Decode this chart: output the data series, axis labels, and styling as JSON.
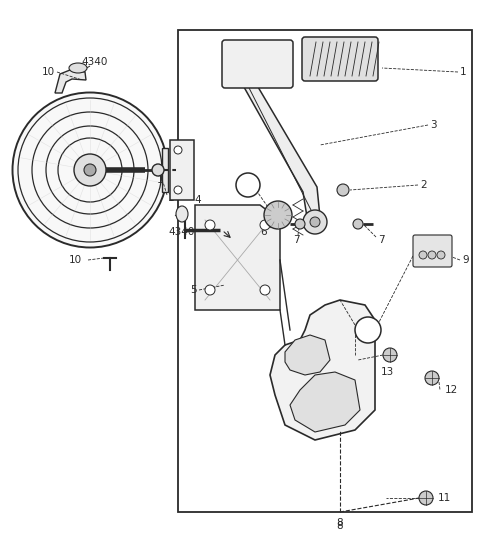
{
  "bg_color": "#ffffff",
  "lc": "#2a2a2a",
  "fig_width": 4.8,
  "fig_height": 5.4,
  "dpi": 100
}
